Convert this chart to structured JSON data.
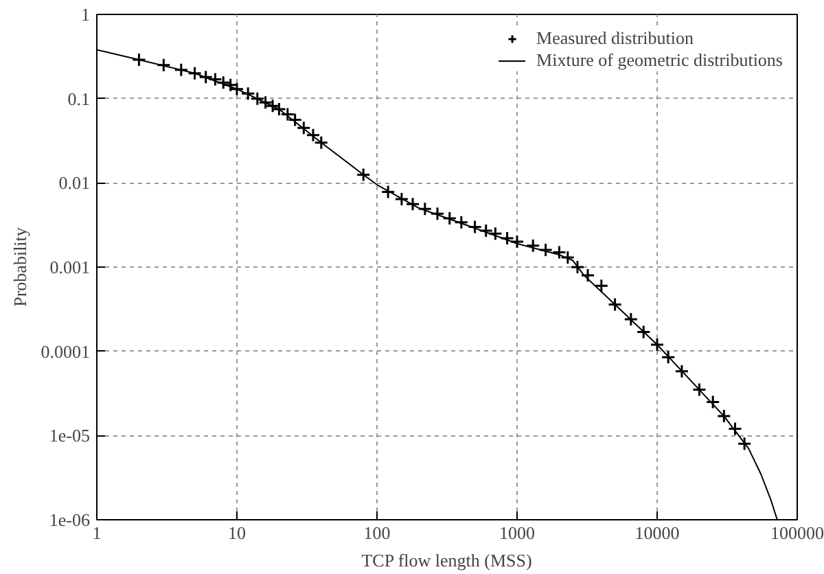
{
  "chart_data": {
    "type": "line",
    "xlabel": "TCP flow length (MSS)",
    "ylabel": "Probability",
    "log": "xy",
    "grid": true,
    "legend": "top right",
    "xlim": [
      1,
      100000
    ],
    "ylim": [
      1e-06,
      1
    ],
    "xticks": [
      1,
      10,
      100,
      1000,
      10000,
      100000
    ],
    "yticks": [
      {
        "value": 1e-06,
        "label": "1e-06"
      },
      {
        "value": 1e-05,
        "label": "1e-05"
      },
      0.0001,
      0.001,
      0.01,
      0.1,
      1
    ],
    "series": [
      {
        "name": "Measured distribution",
        "type": "scatter",
        "marker": "cross",
        "color": "#000000",
        "x": [
          2,
          3,
          4,
          5,
          6,
          7,
          8,
          9,
          10,
          12,
          14,
          16,
          18,
          20,
          23,
          26,
          30,
          35,
          40,
          80,
          120,
          150,
          180,
          220,
          270,
          330,
          400,
          500,
          600,
          700,
          850,
          1000,
          1300,
          1600,
          2000,
          2300,
          2700,
          3200,
          4000,
          5000,
          6500,
          8000,
          10000,
          12000,
          15000,
          20000,
          25000,
          30000,
          36000,
          42000
        ],
        "values": [
          0.29,
          0.25,
          0.22,
          0.2,
          0.18,
          0.17,
          0.155,
          0.145,
          0.13,
          0.115,
          0.1,
          0.09,
          0.082,
          0.075,
          0.065,
          0.056,
          0.045,
          0.037,
          0.03,
          0.0125,
          0.0078,
          0.0064,
          0.0056,
          0.0049,
          0.0043,
          0.0038,
          0.0034,
          0.003,
          0.0027,
          0.0025,
          0.0022,
          0.002,
          0.0018,
          0.0016,
          0.0015,
          0.0013,
          0.001,
          0.0008,
          0.0006,
          0.00036,
          0.00024,
          0.00017,
          0.00012,
          8.5e-05,
          5.8e-05,
          3.5e-05,
          2.5e-05,
          1.7e-05,
          1.2e-05,
          8e-06
        ]
      },
      {
        "name": "Mixture of geometric distributions",
        "line_style": "solid",
        "color": "#000000",
        "x": [
          1,
          2,
          5,
          10,
          20,
          40,
          80,
          100,
          200,
          500,
          1000,
          2000,
          2500,
          3000,
          5000,
          10000,
          20000,
          30000,
          45000,
          55000,
          65000,
          72000
        ],
        "values": [
          0.38,
          0.29,
          0.2,
          0.13,
          0.075,
          0.03,
          0.0125,
          0.0095,
          0.005,
          0.0029,
          0.0019,
          0.0014,
          0.0012,
          0.0008,
          0.00036,
          0.00012,
          3.5e-05,
          1.7e-05,
          7e-06,
          3.5e-06,
          1.7e-06,
          1e-06
        ]
      }
    ]
  }
}
